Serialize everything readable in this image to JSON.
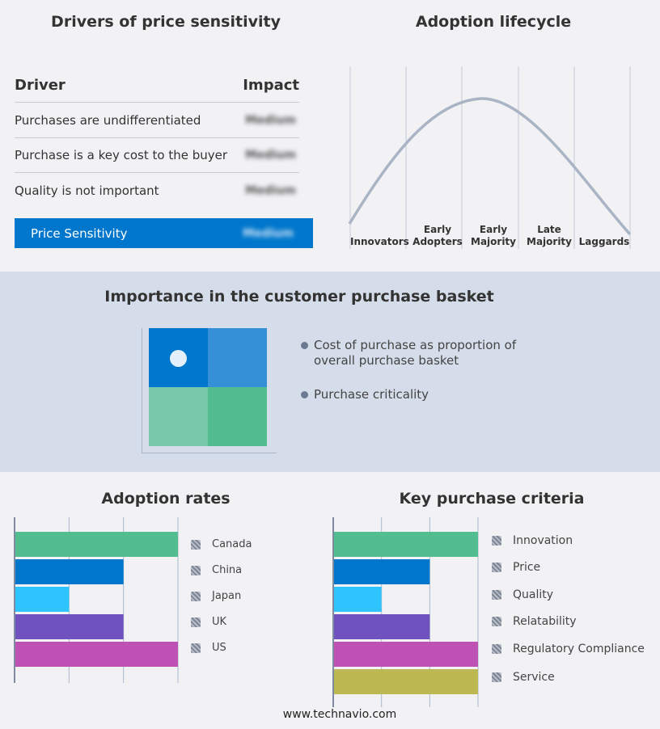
{
  "drivers": {
    "title": "Drivers of price sensitivity",
    "col_driver": "Driver",
    "col_impact": "Impact",
    "rows": [
      {
        "driver": "Purchases are undifferentiated",
        "impact": "Medium"
      },
      {
        "driver": "Purchase is a key cost to the buyer",
        "impact": "Medium"
      },
      {
        "driver": "Quality is not important",
        "impact": "Medium"
      }
    ],
    "summary": {
      "label": "Price Sensitivity",
      "impact": "Medium",
      "color": "#0077cc"
    }
  },
  "lifecycle": {
    "title": "Adoption lifecycle",
    "stages": [
      "Innovators",
      "Early Adopters",
      "Early Majority",
      "Late Majority",
      "Laggards"
    ]
  },
  "basket": {
    "title": "Importance in the customer purchase basket",
    "legend": [
      "Cost of purchase as proportion of overall purchase basket",
      "Purchase criticality"
    ],
    "colors": [
      "#0077cc",
      "#3590d8",
      "#78c8ac",
      "#52bd8f"
    ]
  },
  "chart_data": [
    {
      "type": "bar",
      "title": "Adoption rates",
      "orientation": "horizontal",
      "categories": [
        "Canada",
        "China",
        "Japan",
        "UK",
        "US"
      ],
      "values": [
        3,
        2,
        1,
        2,
        3
      ],
      "xlim": [
        0,
        3
      ],
      "grid": true,
      "legend": "right",
      "colors": [
        "#52bd8f",
        "#0077cc",
        "#2ec4ff",
        "#6f52bd",
        "#bd52b4"
      ]
    },
    {
      "type": "bar",
      "title": "Key purchase criteria",
      "orientation": "horizontal",
      "categories": [
        "Innovation",
        "Price",
        "Quality",
        "Relatability",
        "Regulatory Compliance",
        "Service"
      ],
      "values": [
        3,
        2,
        1,
        2,
        3,
        3
      ],
      "xlim": [
        0,
        3
      ],
      "grid": true,
      "legend": "right",
      "colors": [
        "#52bd8f",
        "#0077cc",
        "#2ec4ff",
        "#6f52bd",
        "#bd52b4",
        "#bdb852"
      ]
    }
  ],
  "footer": "www.technavio.com"
}
